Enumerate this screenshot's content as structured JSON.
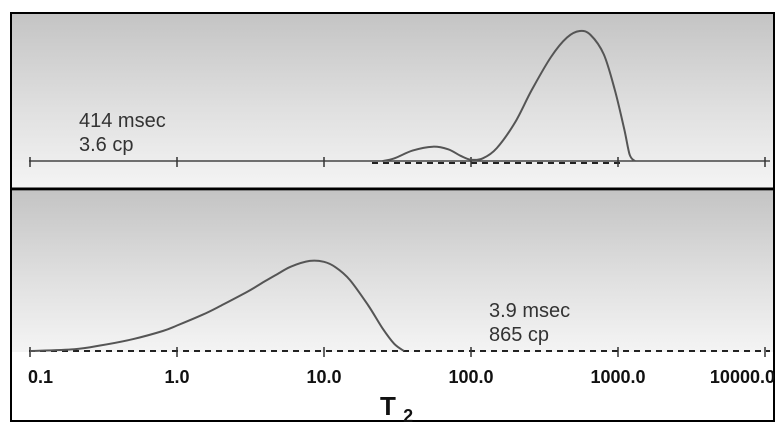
{
  "chart_data": {
    "type": "area",
    "x_scale": "log",
    "xlim": [
      0.1,
      10000
    ],
    "xticks": [
      "0.1",
      "1.0",
      "10.0",
      "100.0",
      "1000.0",
      "10000.0"
    ],
    "xlabel": "T",
    "xlabel_subscript": "2",
    "grid": false,
    "legend": "none",
    "panels": [
      {
        "annotation_lines": [
          "414 msec",
          "3.6 cp"
        ],
        "series": [
          {
            "x": [
              25,
              30,
              40,
              55,
              70,
              85,
              100,
              120,
              150,
              200,
              260,
              350,
              450,
              550,
              650,
              800,
              950,
              1100,
              1200,
              1300
            ],
            "y": [
              0.0,
              0.02,
              0.08,
              0.11,
              0.09,
              0.04,
              0.01,
              0.02,
              0.1,
              0.3,
              0.55,
              0.8,
              0.95,
              1.0,
              0.97,
              0.82,
              0.55,
              0.25,
              0.05,
              0.0
            ]
          }
        ]
      },
      {
        "annotation_lines": [
          "3.9 msec",
          "865 cp"
        ],
        "series": [
          {
            "x": [
              0.1,
              0.2,
              0.3,
              0.5,
              0.8,
              1.0,
              1.5,
              2.0,
              3.0,
              4.0,
              5.0,
              6.0,
              8.0,
              10.0,
              12.0,
              15.0,
              20.0,
              25.0,
              30.0,
              35.0
            ],
            "y": [
              0.0,
              0.02,
              0.06,
              0.13,
              0.22,
              0.28,
              0.4,
              0.5,
              0.65,
              0.77,
              0.86,
              0.93,
              0.99,
              0.98,
              0.92,
              0.78,
              0.5,
              0.25,
              0.08,
              0.0
            ]
          }
        ]
      }
    ]
  }
}
